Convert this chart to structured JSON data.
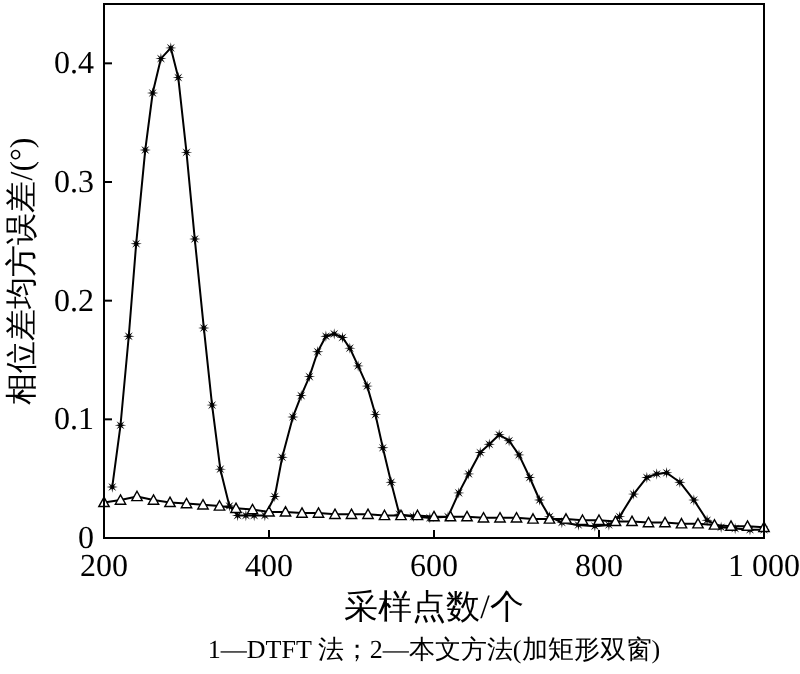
{
  "chart_data": {
    "type": "line",
    "xlabel": "采样点数/个",
    "ylabel": "相位差均方误差/(°)",
    "annotations": [
      "1—DTFT 法；2—本文方法(加矩形双窗)"
    ],
    "xlim": [
      200,
      1000
    ],
    "ylim": [
      0,
      0.45
    ],
    "xticks": [
      200,
      400,
      600,
      800,
      {
        "value": 1000,
        "label": "1 000"
      }
    ],
    "yticks": [
      0,
      0.1,
      0.2,
      0.3,
      0.4
    ],
    "grid": false,
    "series": [
      {
        "color": "#000000",
        "marker": "star",
        "x": [
          210,
          220,
          230,
          239,
          250,
          259,
          269,
          281,
          290,
          300,
          310,
          321,
          331,
          341,
          352,
          362,
          372,
          382,
          395,
          407,
          416,
          429,
          439,
          449,
          459,
          469,
          479,
          489,
          498,
          508,
          519,
          529,
          538,
          548,
          558,
          575,
          595,
          617,
          630,
          642,
          656,
          667,
          679,
          691,
          703,
          716,
          728,
          740,
          755,
          775,
          795,
          812,
          825,
          842,
          858,
          870,
          882,
          898,
          915,
          931,
          948,
          965,
          983,
          1000
        ],
        "values": [
          0.043,
          0.095,
          0.17,
          0.248,
          0.327,
          0.375,
          0.404,
          0.413,
          0.388,
          0.325,
          0.252,
          0.177,
          0.112,
          0.058,
          0.027,
          0.019,
          0.019,
          0.019,
          0.019,
          0.035,
          0.068,
          0.102,
          0.12,
          0.136,
          0.157,
          0.17,
          0.172,
          0.169,
          0.16,
          0.145,
          0.128,
          0.104,
          0.076,
          0.047,
          0.02,
          0.018,
          0.017,
          0.018,
          0.038,
          0.054,
          0.072,
          0.079,
          0.087,
          0.082,
          0.07,
          0.051,
          0.032,
          0.018,
          0.013,
          0.011,
          0.01,
          0.011,
          0.018,
          0.037,
          0.051,
          0.054,
          0.055,
          0.047,
          0.032,
          0.015,
          0.009,
          0.008,
          0.007,
          0.007
        ]
      },
      {
        "color": "#000000",
        "marker": "triangle",
        "x": [
          200,
          220,
          240,
          260,
          280,
          300,
          320,
          340,
          360,
          380,
          400,
          420,
          440,
          460,
          480,
          500,
          520,
          540,
          560,
          580,
          600,
          620,
          640,
          660,
          680,
          700,
          720,
          740,
          760,
          780,
          800,
          820,
          840,
          860,
          880,
          900,
          920,
          940,
          960,
          980,
          1000
        ],
        "values": [
          0.03,
          0.032,
          0.035,
          0.032,
          0.03,
          0.029,
          0.028,
          0.027,
          0.025,
          0.024,
          0.022,
          0.022,
          0.021,
          0.021,
          0.02,
          0.02,
          0.02,
          0.019,
          0.019,
          0.019,
          0.018,
          0.018,
          0.018,
          0.017,
          0.017,
          0.017,
          0.016,
          0.016,
          0.016,
          0.015,
          0.015,
          0.014,
          0.014,
          0.013,
          0.013,
          0.012,
          0.012,
          0.011,
          0.01,
          0.01,
          0.009
        ]
      }
    ]
  }
}
